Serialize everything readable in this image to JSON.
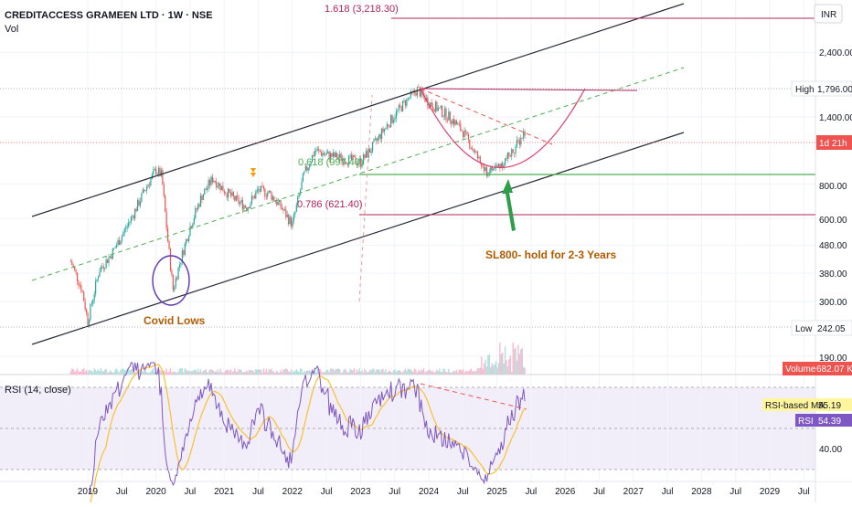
{
  "header": {
    "title": "CREDITACCESS GRAMEEN LTD · 1W · NSE",
    "volume_label": "Vol",
    "currency": "INR"
  },
  "fib_labels": {
    "top": "1.618 (3,218.30)",
    "mid": "0.618 (997.40)",
    "low": "0.786 (621.40)"
  },
  "annotations": {
    "covid": "Covid Lows",
    "sl": "SL800- hold for 2-3 Years"
  },
  "price_axis": {
    "ticks": [
      "2,400.00",
      "1,400.00",
      "800.00",
      "600.00",
      "480.00",
      "380.00",
      "300.00",
      "190.00"
    ],
    "high_label": "High",
    "high_value": "1,796.00",
    "low_label": "Low",
    "low_value": "242.05",
    "current_tag": "1d 21h",
    "volume_tag_label": "Volume",
    "volume_tag_value": "682.07 K"
  },
  "rsi_panel": {
    "title": "RSI (14, close)",
    "ma_label": "RSI-based MA",
    "ma_value": "55.19",
    "rsi_label": "RSI",
    "rsi_value": "54.39",
    "tick": "40.00"
  },
  "time_axis": {
    "labels": [
      "2019",
      "Jul",
      "2020",
      "Jul",
      "2021",
      "Jul",
      "2022",
      "Jul",
      "2023",
      "Jul",
      "2024",
      "Jul",
      "2025",
      "Jul",
      "2026",
      "Jul",
      "2027",
      "Jul",
      "2028",
      "Jul",
      "2029",
      "Jul"
    ]
  },
  "colors": {
    "up": "#26a69a",
    "down": "#ef5350",
    "channel": "#2a2e39",
    "fib": "#b0245a",
    "green_line": "#4caf50",
    "rsi": "#7e57c2",
    "rsi_ma": "#fbc02d",
    "arrow": "#2e9e4a"
  },
  "chart_data": {
    "type": "candlestick",
    "title": "CREDITACCESS GRAMEEN LTD · 1W · NSE",
    "currency": "INR",
    "y_scale": "log",
    "ylim": [
      190,
      3400
    ],
    "x_range": [
      "2018-10",
      "2029-10"
    ],
    "price_series": [
      {
        "date": "2018-10",
        "close": 420
      },
      {
        "date": "2018-12",
        "close": 330
      },
      {
        "date": "2019-01",
        "close": 255
      },
      {
        "date": "2019-03",
        "close": 390
      },
      {
        "date": "2019-05",
        "close": 440
      },
      {
        "date": "2019-07",
        "close": 520
      },
      {
        "date": "2019-09",
        "close": 620
      },
      {
        "date": "2019-11",
        "close": 760
      },
      {
        "date": "2020-01",
        "close": 900
      },
      {
        "date": "2020-02",
        "close": 860
      },
      {
        "date": "2020-03",
        "close": 520
      },
      {
        "date": "2020-04",
        "close": 330
      },
      {
        "date": "2020-05",
        "close": 400
      },
      {
        "date": "2020-07",
        "close": 560
      },
      {
        "date": "2020-09",
        "close": 720
      },
      {
        "date": "2020-11",
        "close": 840
      },
      {
        "date": "2021-01",
        "close": 760
      },
      {
        "date": "2021-03",
        "close": 700
      },
      {
        "date": "2021-05",
        "close": 660
      },
      {
        "date": "2021-07",
        "close": 760
      },
      {
        "date": "2021-09",
        "close": 740
      },
      {
        "date": "2021-11",
        "close": 660
      },
      {
        "date": "2022-01",
        "close": 570
      },
      {
        "date": "2022-03",
        "close": 860
      },
      {
        "date": "2022-05",
        "close": 1060
      },
      {
        "date": "2022-07",
        "close": 1020
      },
      {
        "date": "2022-09",
        "close": 1000
      },
      {
        "date": "2022-11",
        "close": 980
      },
      {
        "date": "2023-01",
        "close": 960
      },
      {
        "date": "2023-03",
        "close": 1080
      },
      {
        "date": "2023-05",
        "close": 1250
      },
      {
        "date": "2023-07",
        "close": 1420
      },
      {
        "date": "2023-09",
        "close": 1600
      },
      {
        "date": "2023-11",
        "close": 1760
      },
      {
        "date": "2024-01",
        "close": 1580
      },
      {
        "date": "2024-03",
        "close": 1480
      },
      {
        "date": "2024-05",
        "close": 1380
      },
      {
        "date": "2024-07",
        "close": 1240
      },
      {
        "date": "2024-09",
        "close": 1050
      },
      {
        "date": "2024-11",
        "close": 880
      },
      {
        "date": "2025-01",
        "close": 920
      },
      {
        "date": "2025-03",
        "close": 1000
      },
      {
        "date": "2025-05",
        "close": 1150
      },
      {
        "date": "2025-06",
        "close": 1260
      }
    ],
    "levels": {
      "fib_1_618": 3218.3,
      "fib_0_618": 997.4,
      "fib_0_786": 621.4,
      "high": 1796.0,
      "low": 242.05,
      "stop_loss": 800
    },
    "volume_last": "682.07 K",
    "rsi": {
      "length": 14,
      "source": "close",
      "last": 54.39,
      "ma_last": 55.19
    }
  }
}
